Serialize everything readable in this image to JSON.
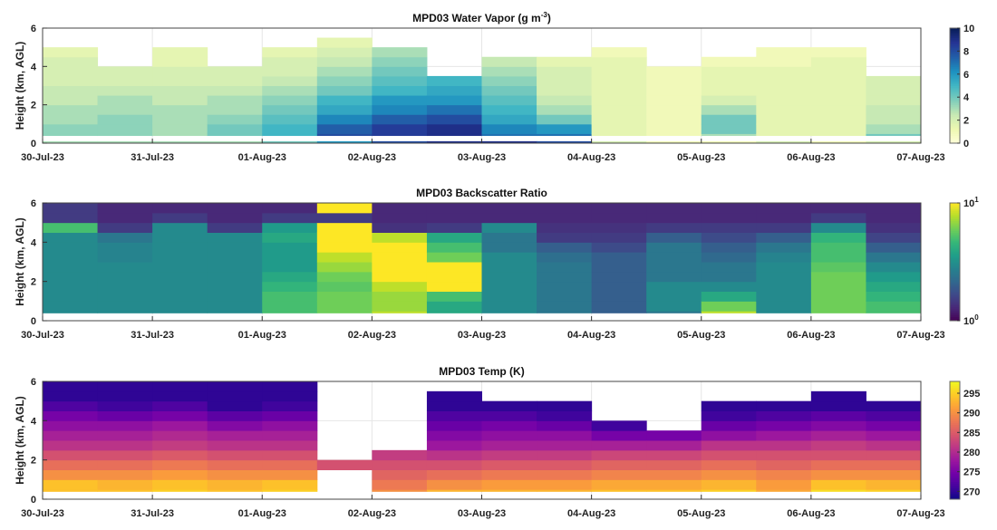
{
  "chart_data": [
    {
      "type": "heatmap",
      "title": "MPD03 Water Vapor (g m",
      "title_sup": "-3",
      "title_end": ")",
      "ylabel": "Height (km, AGL)",
      "ylim": [
        0,
        6
      ],
      "yticks": [
        "0",
        "2",
        "4",
        "6"
      ],
      "xticks": [
        "30-Jul-23",
        "31-Jul-23",
        "01-Aug-23",
        "02-Aug-23",
        "03-Aug-23",
        "04-Aug-23",
        "05-Aug-23",
        "06-Aug-23",
        "07-Aug-23"
      ],
      "xlim_days": [
        0,
        8
      ],
      "colormap": "YlGnBu",
      "clim": [
        0,
        10
      ],
      "cbar_ticks": [
        "0",
        "2",
        "4",
        "6",
        "8",
        "10"
      ],
      "time_days": [
        0.25,
        0.75,
        1.25,
        1.75,
        2.25,
        2.75,
        3.25,
        3.75,
        4.25,
        4.75,
        5.25,
        5.75,
        6.25,
        6.75,
        7.25,
        7.75
      ],
      "height_km": [
        0.25,
        0.75,
        1.25,
        1.75,
        2.25,
        2.75,
        3.25,
        3.75,
        4.25,
        4.75,
        5.25,
        5.75
      ],
      "surface_band": [
        3,
        3,
        3,
        3,
        4,
        6,
        8,
        9,
        9,
        8,
        2,
        1,
        1,
        2,
        1,
        2
      ],
      "profiles": [
        [
          3.5,
          3.5,
          3,
          3,
          2.5,
          2.5,
          2,
          2,
          2,
          1.5,
          null,
          null
        ],
        [
          3.5,
          3.5,
          3.5,
          3,
          3,
          2.5,
          2,
          2,
          null,
          null,
          null,
          null
        ],
        [
          3,
          3,
          3,
          3,
          2.5,
          2.5,
          2,
          2,
          1.5,
          1.5,
          null,
          null
        ],
        [
          4,
          4,
          3.5,
          3,
          3,
          2.5,
          2,
          2,
          null,
          null,
          null,
          null
        ],
        [
          5,
          5,
          4.5,
          4,
          3.5,
          3,
          2.5,
          2,
          2,
          1.5,
          null,
          null
        ],
        [
          8,
          7.5,
          6.5,
          5.5,
          5,
          4,
          3.5,
          3,
          2.5,
          2,
          1.5,
          null
        ],
        [
          8.5,
          8.5,
          7.5,
          6.5,
          6,
          5,
          4.5,
          4,
          3.5,
          3,
          null,
          null
        ],
        [
          9,
          9,
          8,
          7,
          6,
          5.5,
          5,
          null,
          null,
          null,
          null,
          null
        ],
        [
          7,
          6.5,
          5.5,
          5,
          4.5,
          4,
          3.5,
          3,
          2.5,
          null,
          null,
          null
        ],
        [
          7,
          6,
          4,
          3,
          2.5,
          2,
          2,
          2,
          1.5,
          null,
          null,
          null
        ],
        [
          1.5,
          1.5,
          1.5,
          1.5,
          1.5,
          1.5,
          1.5,
          1.5,
          1.5,
          1,
          null,
          null
        ],
        [
          1,
          1,
          1,
          1,
          1,
          1,
          1,
          1,
          null,
          null,
          null,
          null
        ],
        [
          3,
          4,
          4,
          3,
          2,
          1.5,
          1.5,
          1.5,
          1,
          null,
          null,
          null
        ],
        [
          1.5,
          1.5,
          1.5,
          1.5,
          1.5,
          1.5,
          1.5,
          1.5,
          1,
          1,
          null,
          null
        ],
        [
          1.5,
          1.5,
          1.5,
          1.5,
          1.5,
          1.5,
          1.5,
          1.5,
          1.5,
          1,
          null,
          null
        ],
        [
          4,
          3,
          2.5,
          2.5,
          2,
          2,
          2,
          null,
          null,
          null,
          null,
          null
        ]
      ]
    },
    {
      "type": "heatmap",
      "title": "MPD03  Backscatter Ratio",
      "ylabel": "Height (km, AGL)",
      "ylim": [
        0,
        6
      ],
      "yticks": [
        "0",
        "2",
        "4",
        "6"
      ],
      "xticks": [
        "30-Jul-23",
        "31-Jul-23",
        "01-Aug-23",
        "02-Aug-23",
        "03-Aug-23",
        "04-Aug-23",
        "05-Aug-23",
        "06-Aug-23",
        "07-Aug-23"
      ],
      "xlim_days": [
        0,
        8
      ],
      "colormap": "viridis",
      "color_scale": "log",
      "clim": [
        1,
        10
      ],
      "cbar_ticks": [
        {
          "base": "10",
          "exp": "0"
        },
        {
          "base": "10",
          "exp": "1"
        }
      ],
      "time_days": [
        0.25,
        0.75,
        1.25,
        1.75,
        2.25,
        2.75,
        3.25,
        3.75,
        4.25,
        4.75,
        5.25,
        5.75,
        6.25,
        6.75,
        7.25,
        7.75
      ],
      "height_km": [
        0.25,
        0.75,
        1.25,
        1.75,
        2.25,
        2.75,
        3.25,
        3.75,
        4.25,
        4.75,
        5.25,
        5.75
      ],
      "profiles": [
        [
          3,
          3,
          3,
          3,
          3,
          3,
          3,
          3,
          3,
          5,
          1.5,
          1.5
        ],
        [
          3,
          3,
          3,
          3,
          3,
          3,
          2.8,
          2.8,
          2.5,
          1.5,
          1.3,
          1.3
        ],
        [
          3,
          3,
          3,
          3,
          3,
          3,
          3,
          3,
          3,
          3,
          1.5,
          1.3
        ],
        [
          3,
          3,
          3,
          3,
          3,
          3,
          3,
          3,
          3,
          1.5,
          1.3,
          1.3
        ],
        [
          5,
          5,
          5,
          4.5,
          4,
          3.5,
          3.5,
          3.5,
          4,
          3.5,
          1.5,
          1.3
        ],
        [
          6,
          6,
          6,
          5.5,
          6,
          7,
          8,
          10,
          10,
          10,
          1.5,
          10
        ],
        [
          8,
          7,
          7,
          8,
          10,
          10,
          10,
          10,
          8,
          1.4,
          1.3,
          1.3
        ],
        [
          4,
          4,
          5,
          10,
          10,
          10,
          6,
          5,
          4,
          1.5,
          1.3,
          1.3
        ],
        [
          3,
          3,
          3,
          3,
          3,
          3,
          3,
          2.5,
          2.5,
          3,
          1.3,
          1.3
        ],
        [
          2.5,
          2.5,
          2.5,
          2.5,
          2.5,
          2.5,
          2.3,
          2,
          1.5,
          1.4,
          1.3,
          1.3
        ],
        [
          2,
          2,
          2,
          2,
          2,
          2,
          2,
          1.7,
          1.5,
          1.4,
          1.3,
          1.3
        ],
        [
          2.5,
          3,
          3,
          3,
          2.5,
          2.5,
          2.5,
          2.5,
          2,
          1.5,
          1.3,
          1.3
        ],
        [
          8,
          6,
          4,
          3,
          2.5,
          2.5,
          2.2,
          2,
          1.7,
          1.5,
          1.3,
          1.3
        ],
        [
          3,
          3,
          3,
          3,
          3,
          3,
          2.8,
          2.5,
          2,
          1.5,
          1.3,
          1.3
        ],
        [
          6,
          6,
          6,
          6,
          6,
          5.5,
          5,
          5,
          4.5,
          3,
          1.5,
          1.3
        ],
        [
          5,
          5,
          4.5,
          4,
          3.5,
          3,
          2.5,
          2,
          1.6,
          1.4,
          1.3,
          1.3
        ]
      ]
    },
    {
      "type": "heatmap",
      "title": "MPD03 Temp (K)",
      "ylabel": "Height (km, AGL)",
      "ylim": [
        0,
        6
      ],
      "yticks": [
        "0",
        "2",
        "4",
        "6"
      ],
      "xticks": [
        "30-Jul-23",
        "31-Jul-23",
        "01-Aug-23",
        "02-Aug-23",
        "03-Aug-23",
        "04-Aug-23",
        "05-Aug-23",
        "06-Aug-23",
        "07-Aug-23"
      ],
      "xlim_days": [
        0,
        8
      ],
      "colormap": "plasma",
      "clim": [
        268,
        298
      ],
      "cbar_ticks": [
        "270",
        "275",
        "280",
        "285",
        "290",
        "295"
      ],
      "time_days": [
        0.25,
        0.75,
        1.25,
        1.75,
        2.25,
        2.75,
        3.25,
        3.75,
        4.25,
        4.75,
        5.25,
        5.75,
        6.25,
        6.75,
        7.25,
        7.75
      ],
      "height_km": [
        0.25,
        0.75,
        1.25,
        1.75,
        2.25,
        2.75,
        3.25,
        3.75,
        4.25,
        4.75,
        5.25,
        5.75
      ],
      "profiles": [
        [
          294,
          294,
          290,
          287,
          284,
          281,
          279,
          277,
          275,
          272,
          270,
          270
        ],
        [
          294,
          293,
          290,
          287,
          284,
          281,
          279,
          277,
          274,
          271,
          270,
          270
        ],
        [
          295,
          294,
          291,
          288,
          285,
          282,
          280,
          278,
          275,
          272,
          270,
          270
        ],
        [
          294,
          293,
          290,
          287,
          284,
          281,
          279,
          276,
          273,
          270,
          270,
          270
        ],
        [
          295,
          294,
          290,
          287,
          284,
          281,
          279,
          277,
          274,
          271,
          270,
          270
        ],
        [
          null,
          null,
          null,
          284,
          null,
          null,
          null,
          null,
          null,
          null,
          null,
          null
        ],
        [
          290,
          288,
          286,
          284,
          282,
          null,
          null,
          null,
          null,
          null,
          null,
          null
        ],
        [
          293,
          290,
          287,
          284,
          281,
          278,
          276,
          274,
          272,
          270,
          270,
          null
        ],
        [
          293,
          291,
          288,
          285,
          282,
          279,
          277,
          275,
          272,
          270,
          null,
          null
        ],
        [
          293,
          291,
          288,
          285,
          282,
          279,
          277,
          274,
          271,
          270,
          null,
          null
        ],
        [
          294,
          292,
          289,
          286,
          283,
          279,
          275,
          271,
          null,
          null,
          null,
          null
        ],
        [
          294,
          292,
          289,
          286,
          283,
          279,
          275,
          null,
          null,
          null,
          null,
          null
        ],
        [
          295,
          293,
          290,
          287,
          284,
          281,
          277,
          274,
          271,
          270,
          null,
          null
        ],
        [
          292,
          291,
          289,
          286,
          284,
          281,
          278,
          275,
          272,
          270,
          null,
          null
        ],
        [
          296,
          294,
          290,
          287,
          284,
          282,
          279,
          276,
          273,
          270,
          270,
          null
        ],
        [
          295,
          293,
          290,
          287,
          284,
          281,
          278,
          275,
          272,
          270,
          null,
          null
        ]
      ]
    }
  ]
}
